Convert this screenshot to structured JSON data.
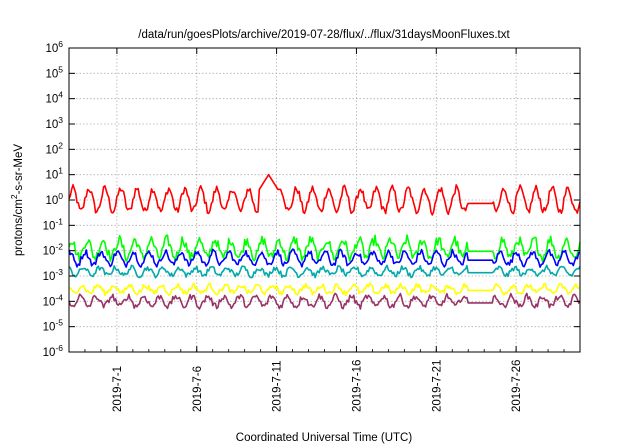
{
  "chart_data": {
    "type": "line",
    "title": "/data/run/goesPlots/archive/2019-07-28/flux/../flux/31daysMoonFluxes.txt",
    "xlabel": "Coordinated Universal Time (UTC)",
    "ylabel": {
      "pre": "protons/cm",
      "sup": "2",
      "post": "-s-sr-MeV"
    },
    "yscale": "log",
    "ylim": [
      1e-06,
      1000000.0
    ],
    "ytick_exponents": [
      -6,
      -5,
      -4,
      -3,
      -2,
      -1,
      0,
      1,
      2,
      3,
      4,
      5,
      6
    ],
    "xlim": [
      "2019-06-28",
      "2019-07-30"
    ],
    "xtick_labels": [
      "2019-7-1",
      "2019-7-6",
      "2019-7-11",
      "2019-7-16",
      "2019-7-21",
      "2019-7-26"
    ],
    "xtick_dates": [
      "2019-07-01",
      "2019-07-06",
      "2019-07-11",
      "2019-07-16",
      "2019-07-21",
      "2019-07-26"
    ],
    "grid": true,
    "data_gap": [
      "2019-07-23",
      "2019-07-24.5"
    ],
    "series": [
      {
        "color": "#ff0000",
        "level": 1.0,
        "amplitude": 0.45,
        "noise": 0.15,
        "period_days": 1,
        "spikes": [
          {
            "date": "2019-07-10.5",
            "value": 10
          }
        ]
      },
      {
        "color": "#00ff00",
        "level": 0.012,
        "amplitude": 0.35,
        "noise": 0.2,
        "period_days": 1
      },
      {
        "color": "#0000ff",
        "level": 0.005,
        "amplitude": 0.25,
        "noise": 0.12,
        "period_days": 1
      },
      {
        "color": "#00aaaa",
        "level": 0.0015,
        "amplitude": 0.15,
        "noise": 0.1,
        "period_days": 1
      },
      {
        "color": "#ffff00",
        "level": 0.0003,
        "amplitude": 0.15,
        "noise": 0.1,
        "period_days": 1
      },
      {
        "color": "#993366",
        "level": 0.0001,
        "amplitude": 0.2,
        "noise": 0.12,
        "period_days": 1
      }
    ]
  }
}
